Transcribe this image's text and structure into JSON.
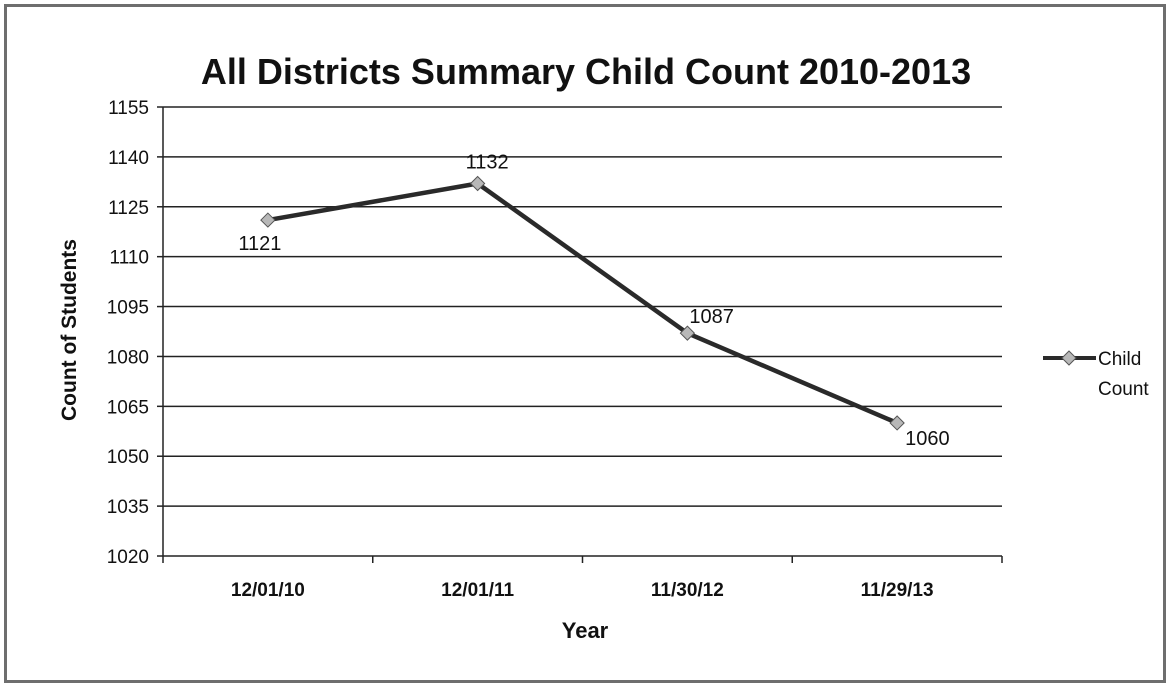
{
  "chart_data": {
    "type": "line",
    "title": "All Districts Summary Child Count 2010-2013",
    "xlabel": "Year",
    "ylabel": "Count of Students",
    "categories": [
      "12/01/10",
      "12/01/11",
      "11/30/12",
      "11/29/13"
    ],
    "series": [
      {
        "name": "Child Count",
        "values": [
          1121,
          1132,
          1087,
          1060
        ],
        "labels": [
          "1121",
          "1132",
          "1087",
          "1060"
        ],
        "color": "#2a2a2a",
        "marker_color": "#b8b8b8"
      }
    ],
    "ylim": [
      1020,
      1155
    ],
    "yticks": [
      1020,
      1035,
      1050,
      1065,
      1080,
      1095,
      1110,
      1125,
      1140,
      1155
    ],
    "grid": true,
    "legend": "right"
  }
}
